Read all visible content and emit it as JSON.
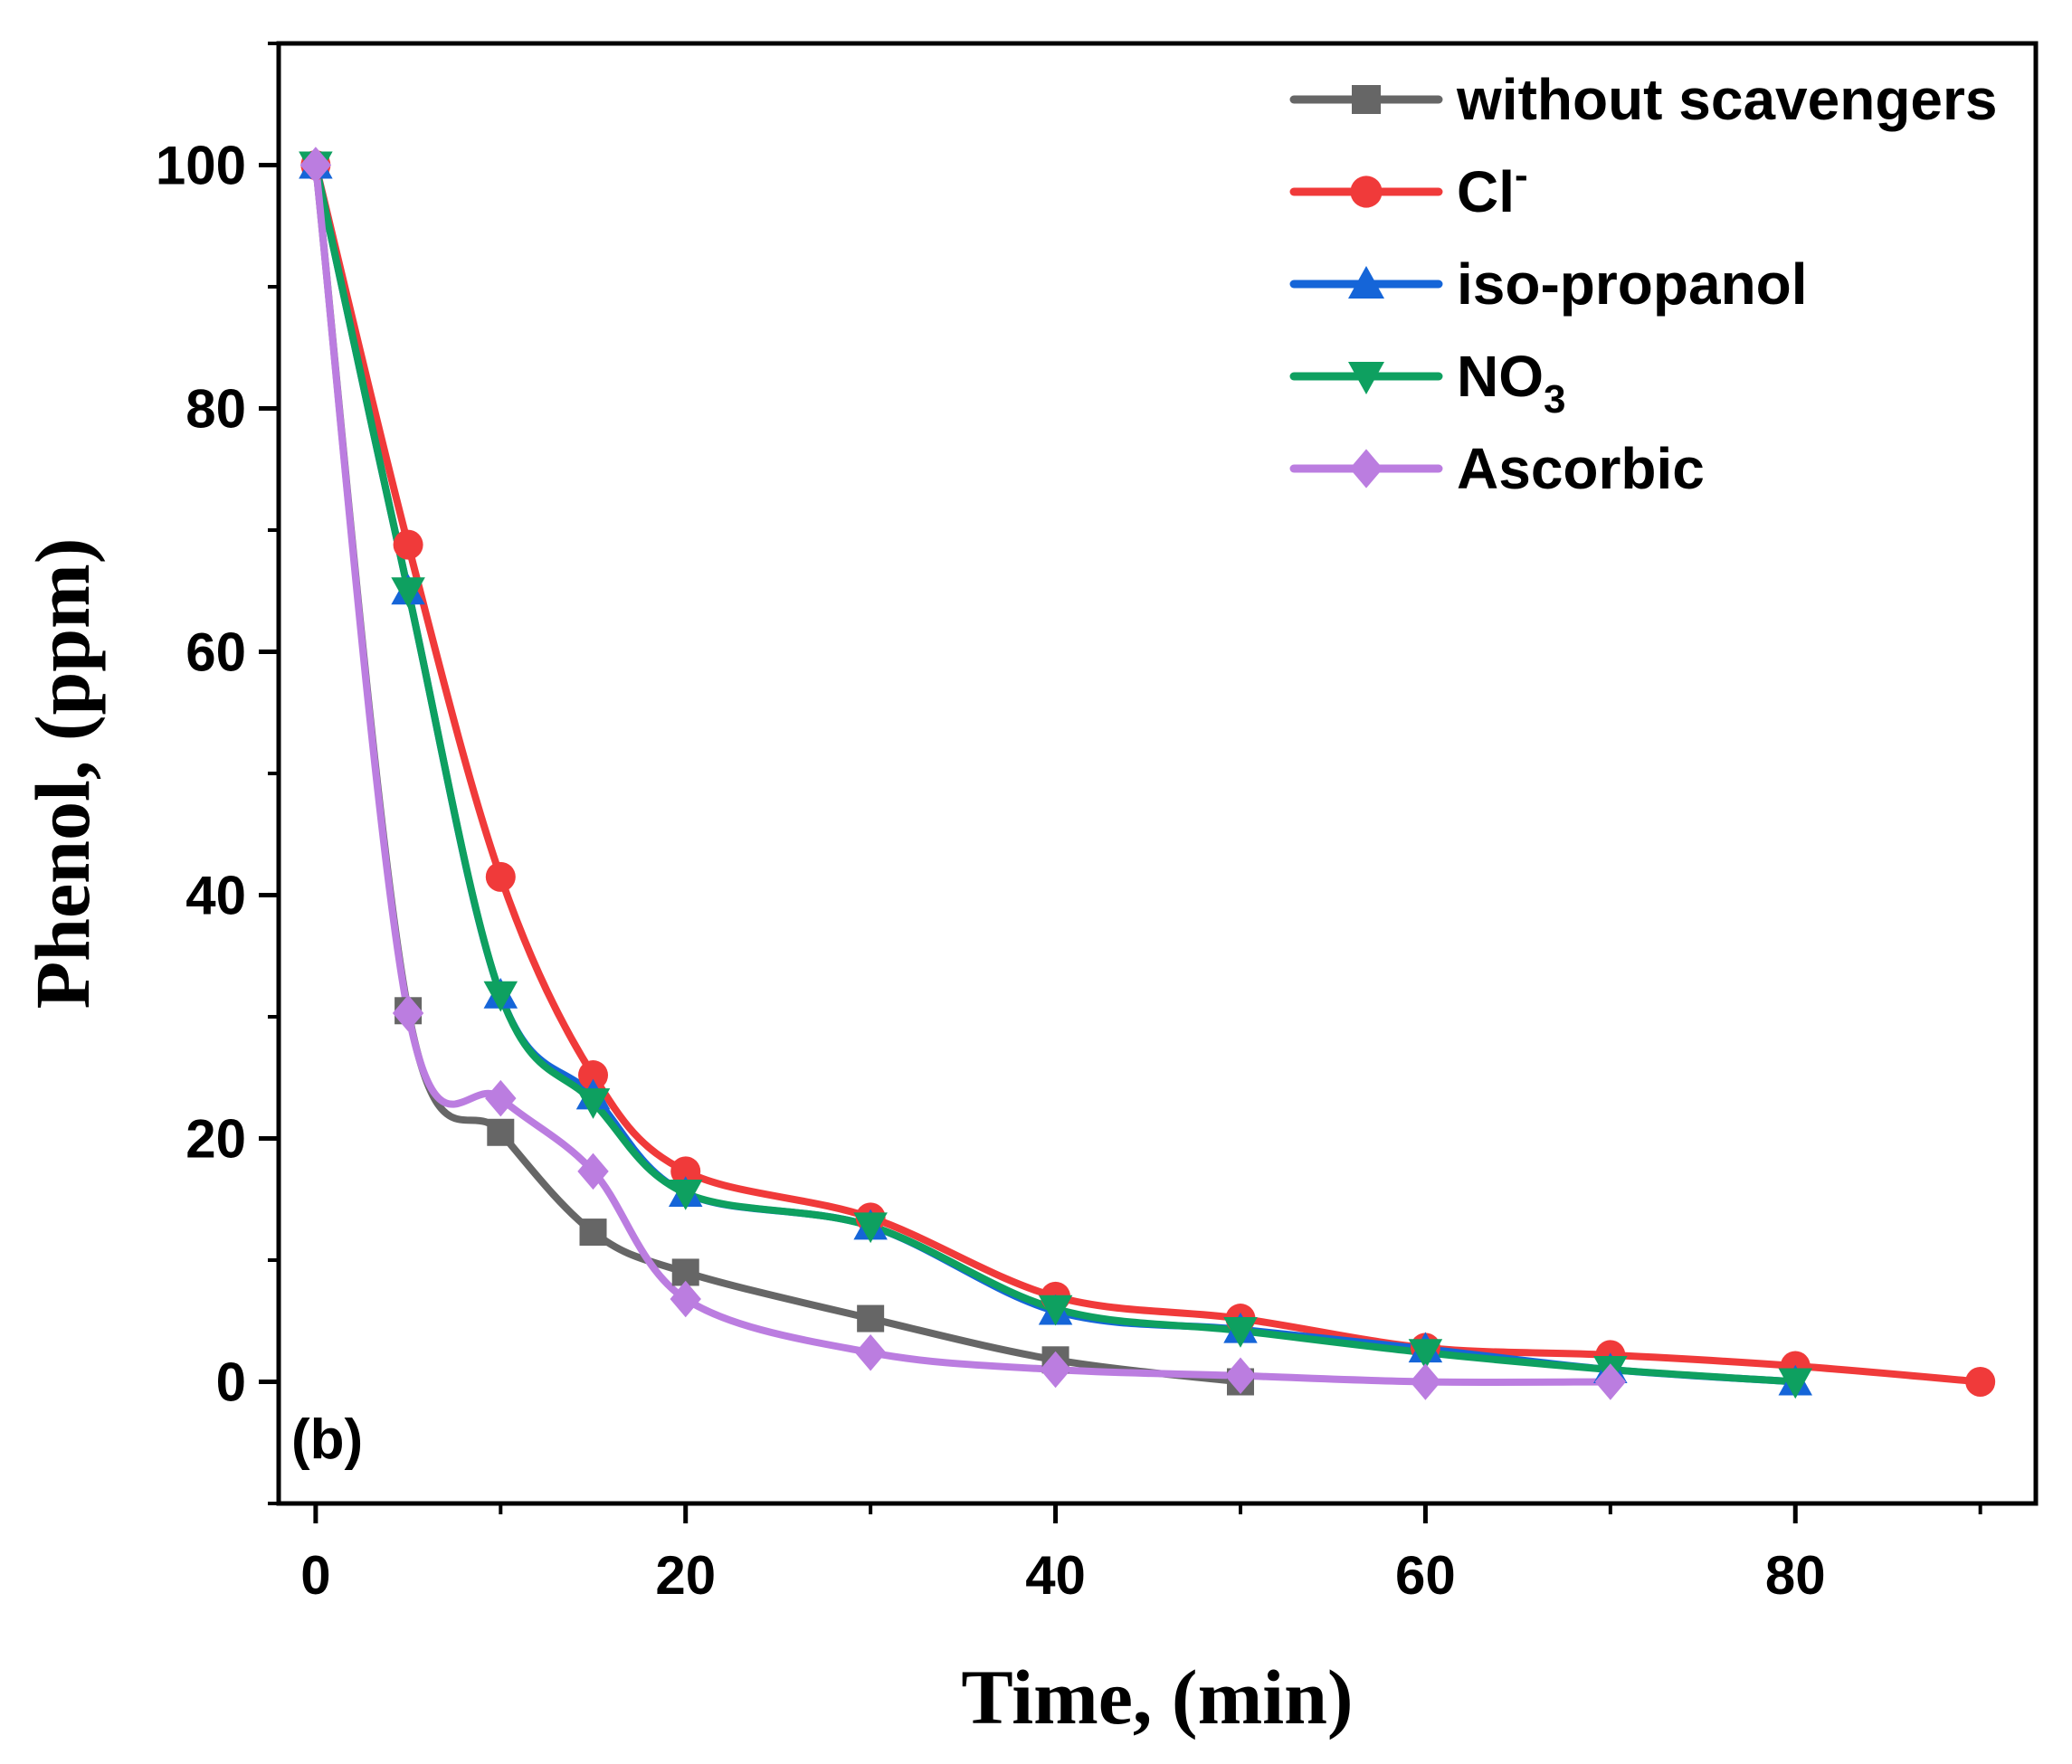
{
  "chart_data": {
    "type": "line",
    "title": "",
    "panel_label": "(b)",
    "xlabel": "Time, (min)",
    "ylabel": "Phenol, (ppm)",
    "xlim": [
      -2,
      93
    ],
    "ylim": [
      -10,
      110
    ],
    "xticks": [
      0,
      20,
      40,
      60,
      80
    ],
    "yticks": [
      0,
      20,
      40,
      60,
      80,
      100
    ],
    "grid": false,
    "legend_position": "top-right",
    "series": [
      {
        "name": "without scavengers",
        "color": "#666666",
        "marker": "square",
        "x": [
          0,
          5,
          10,
          15,
          20,
          30,
          40,
          50
        ],
        "y": [
          100,
          30.5,
          20.5,
          12.3,
          9,
          5.2,
          1.8,
          0
        ]
      },
      {
        "name": "Cl",
        "name_sup": "-",
        "color": "#f03a3a",
        "marker": "circle",
        "x": [
          0,
          5,
          10,
          15,
          20,
          30,
          40,
          50,
          60,
          70,
          80,
          90
        ],
        "y": [
          100,
          68.8,
          41.5,
          25.2,
          17.3,
          13.5,
          7,
          5.2,
          2.8,
          2.2,
          1.3,
          0
        ]
      },
      {
        "name": "iso-propanol",
        "color": "#1565d8",
        "marker": "triangle-up",
        "x": [
          0,
          5,
          10,
          15,
          20,
          30,
          40,
          50,
          60,
          70,
          80
        ],
        "y": [
          100,
          65,
          31.8,
          23.5,
          15.5,
          12.8,
          5.8,
          4.3,
          2.7,
          1,
          0
        ]
      },
      {
        "name": "NO",
        "name_sub": "3",
        "color": "#0ea060",
        "marker": "triangle-down",
        "x": [
          0,
          5,
          10,
          15,
          20,
          30,
          40,
          50,
          60,
          70,
          80
        ],
        "y": [
          100,
          65,
          31.8,
          23,
          15.5,
          12.8,
          6,
          4.2,
          2.4,
          1,
          0
        ]
      },
      {
        "name": "Ascorbic",
        "color": "#bb7de0",
        "marker": "diamond",
        "x": [
          0,
          5,
          10,
          15,
          20,
          30,
          40,
          50,
          60,
          70
        ],
        "y": [
          100,
          30.3,
          23.3,
          17.3,
          6.8,
          2.4,
          1,
          0.5,
          0,
          0
        ]
      }
    ]
  }
}
